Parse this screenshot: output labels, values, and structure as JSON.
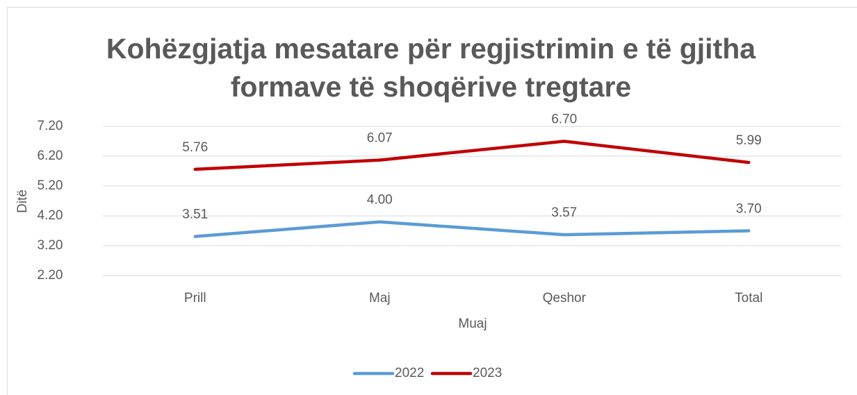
{
  "chart_data": {
    "type": "line",
    "title": [
      "Kohëzgjatja mesatare për regjistrimin e të gjitha",
      "formave të shoqërive tregtare"
    ],
    "x_label": "Muaj",
    "y_label": "Ditë",
    "categories": [
      "Prill",
      "Maj",
      "Qeshor",
      "Total"
    ],
    "series": [
      {
        "name": "2022",
        "color": "#5b9bd5",
        "values": [
          3.51,
          4.0,
          3.57,
          3.7
        ],
        "value_labels": [
          "3.51",
          "4.00",
          "3.57",
          "3.70"
        ]
      },
      {
        "name": "2023",
        "color": "#c00000",
        "values": [
          5.76,
          6.07,
          6.7,
          5.99
        ],
        "value_labels": [
          "5.76",
          "6.07",
          "6.70",
          "5.99"
        ]
      }
    ],
    "ylim": [
      2.2,
      7.2
    ],
    "yticks": [
      {
        "value": 2.2,
        "label": "2.20"
      },
      {
        "value": 3.2,
        "label": "3.20"
      },
      {
        "value": 4.2,
        "label": "4.20"
      },
      {
        "value": 5.2,
        "label": "5.20"
      },
      {
        "value": 6.2,
        "label": "6.20"
      },
      {
        "value": 7.2,
        "label": "7.20"
      }
    ],
    "grid": true,
    "legend": "bottom"
  }
}
